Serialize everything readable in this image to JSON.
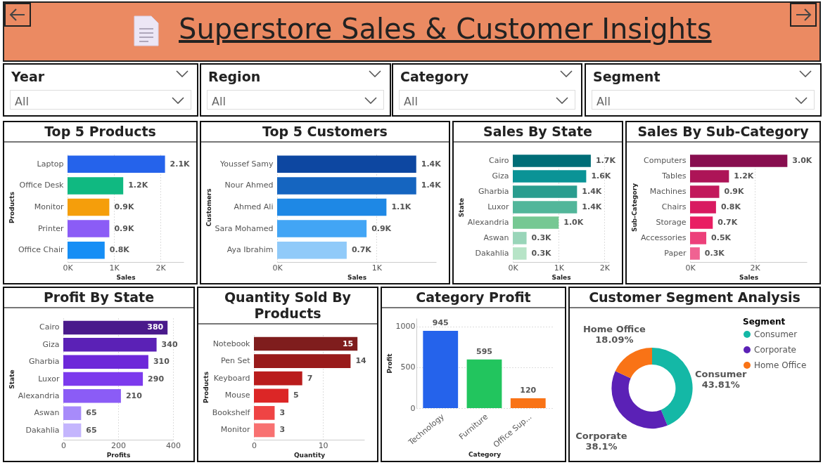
{
  "chart_data": [
    {
      "type": "other",
      "title": "Superstore Sales & Customer Insights",
      "annotations": [
        "Year",
        "All",
        "Region",
        "All",
        "Category",
        "All",
        "Segment",
        "All"
      ]
    },
    {
      "type": "bar",
      "orientation": "horizontal",
      "title": "Top 5 Products",
      "xlabel": "Sales",
      "ylabel": "Products",
      "categories": [
        "Laptop",
        "Office Desk",
        "Monitor",
        "Printer",
        "Office Chair"
      ],
      "values": [
        2.1,
        1.2,
        0.9,
        0.9,
        0.8
      ],
      "value_labels": [
        "2.1K",
        "1.2K",
        "0.9K",
        "0.9K",
        "0.8K"
      ],
      "colors": [
        "#2563eb",
        "#10b981",
        "#f59e0b",
        "#8b5cf6",
        "#168ef5"
      ],
      "xlim": [
        0,
        2.5
      ],
      "xticks": [
        {
          "value": 0,
          "label": "0K"
        },
        {
          "value": 1,
          "label": "1K"
        },
        {
          "value": 2,
          "label": "2K"
        }
      ],
      "grid": "x"
    },
    {
      "type": "bar",
      "orientation": "horizontal",
      "title": "Top 5 Customers",
      "xlabel": "Sales",
      "ylabel": "Customers",
      "categories": [
        "Youssef Samy",
        "Nour Ahmed",
        "Ahmed Ali",
        "Sara Mohamed",
        "Aya Ibrahim"
      ],
      "values": [
        1.4,
        1.4,
        1.1,
        0.9,
        0.7
      ],
      "value_labels": [
        "1.4K",
        "1.4K",
        "1.1K",
        "0.9K",
        "0.7K"
      ],
      "colors": [
        "#0d47a1",
        "#1565c0",
        "#1e88e5",
        "#42a5f5",
        "#90caf9"
      ],
      "xlim": [
        0,
        1.6
      ],
      "xticks": [
        {
          "value": 0,
          "label": "0K"
        },
        {
          "value": 1,
          "label": "1K"
        }
      ],
      "grid": "x"
    },
    {
      "type": "bar",
      "orientation": "horizontal",
      "title": "Sales By State",
      "xlabel": "Sales",
      "ylabel": "State",
      "categories": [
        "Cairo",
        "Giza",
        "Gharbia",
        "Luxor",
        "Alexandria",
        "Aswan",
        "Dakahlia"
      ],
      "values": [
        1.7,
        1.6,
        1.4,
        1.4,
        1.0,
        0.3,
        0.3
      ],
      "value_labels": [
        "1.7K",
        "1.6K",
        "1.4K",
        "1.4K",
        "1.0K",
        "0.3K",
        "0.3K"
      ],
      "colors": [
        "#006d77",
        "#0a9396",
        "#2a9d8f",
        "#52b69a",
        "#76c893",
        "#99d5b9",
        "#b7e4c7"
      ],
      "xlim": [
        0,
        2.1
      ],
      "xticks": [
        {
          "value": 0,
          "label": "0K"
        },
        {
          "value": 1,
          "label": "1K"
        },
        {
          "value": 2,
          "label": "2K"
        }
      ],
      "grid": "x"
    },
    {
      "type": "bar",
      "orientation": "horizontal",
      "title": "Sales By Sub-Category",
      "xlabel": "Sales",
      "ylabel": "Sub-Category",
      "categories": [
        "Computers",
        "Tables",
        "Machines",
        "Chairs",
        "Storage",
        "Accessories",
        "Paper"
      ],
      "values": [
        3.0,
        1.2,
        0.9,
        0.8,
        0.7,
        0.5,
        0.3
      ],
      "value_labels": [
        "3.0K",
        "1.2K",
        "0.9K",
        "0.8K",
        "0.7K",
        "0.5K",
        "0.3K"
      ],
      "colors": [
        "#880e4f",
        "#ad1457",
        "#c2185b",
        "#d81b60",
        "#e91e63",
        "#ec407a",
        "#f06292"
      ],
      "xlim": [
        0,
        3.6
      ],
      "xticks": [
        {
          "value": 0,
          "label": "0K"
        },
        {
          "value": 2,
          "label": "2K"
        }
      ],
      "grid": "x"
    },
    {
      "type": "bar",
      "orientation": "horizontal",
      "title": "Profit By State",
      "xlabel": "Profits",
      "ylabel": "State",
      "categories": [
        "Cairo",
        "Giza",
        "Gharbia",
        "Luxor",
        "Alexandria",
        "Aswan",
        "Dakahlia"
      ],
      "values": [
        380,
        340,
        310,
        290,
        210,
        65,
        65
      ],
      "data_labels": true,
      "colors": [
        "#4a1a8c",
        "#5b21b6",
        "#6d28d9",
        "#7c3aed",
        "#8b5cf6",
        "#a78bfa",
        "#c4b5fd"
      ],
      "xlim": [
        0,
        400
      ],
      "xticks": [
        0,
        200,
        400
      ],
      "grid": "x"
    },
    {
      "type": "bar",
      "orientation": "horizontal",
      "title": "Quantity Sold By Products",
      "xlabel": "Quantity",
      "ylabel": "Products",
      "categories": [
        "Notebook",
        "Pen Set",
        "Keyboard",
        "Mouse",
        "Bookshelf",
        "Monitor"
      ],
      "values": [
        15,
        14,
        7,
        5,
        3,
        3
      ],
      "data_labels": true,
      "colors": [
        "#7f1d1d",
        "#991b1b",
        "#b91c1c",
        "#dc2626",
        "#ef4444",
        "#f87171"
      ],
      "xlim": [
        0,
        16
      ],
      "xticks": [
        0,
        10
      ],
      "grid": "x"
    },
    {
      "type": "bar",
      "title": "Category Profit",
      "xlabel": "Category",
      "ylabel": "Profit",
      "categories": [
        "Technology",
        "Furniture",
        "Office Sup..."
      ],
      "values": [
        945,
        595,
        120
      ],
      "data_labels": true,
      "colors": [
        "#2563eb",
        "#22c55e",
        "#f97316"
      ],
      "ylim": [
        0,
        1100
      ],
      "yticks": [
        0,
        500,
        1000
      ],
      "grid": "y"
    },
    {
      "type": "donut",
      "title": "Customer Segment Analysis",
      "legend_title": "Segment",
      "legend": "right",
      "categories": [
        "Consumer",
        "Corporate",
        "Home Office"
      ],
      "values": [
        43.81,
        38.1,
        18.09
      ],
      "value_labels": [
        "43.81%",
        "38.1%",
        "18.09%"
      ],
      "colors": [
        "#14b8a6",
        "#5b21b6",
        "#f97316"
      ]
    }
  ]
}
